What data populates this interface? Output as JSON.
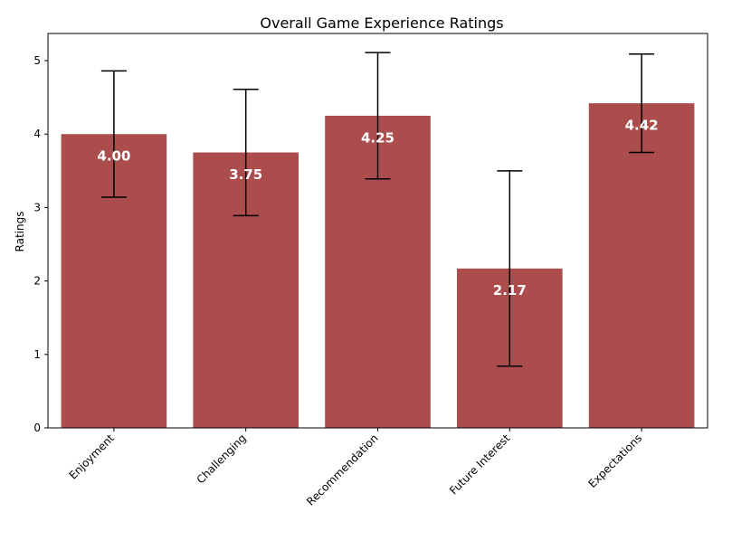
{
  "chart_data": {
    "type": "bar",
    "title": "Overall Game Experience Ratings",
    "xlabel": "",
    "ylabel": "Ratings",
    "categories": [
      "Enjoyment",
      "Challenging",
      "Recommendation",
      "Future Interest",
      "Expectations"
    ],
    "values": [
      4.0,
      3.75,
      4.25,
      2.17,
      4.42
    ],
    "value_labels": [
      "4.00",
      "3.75",
      "4.25",
      "2.17",
      "4.42"
    ],
    "error": [
      0.86,
      0.86,
      0.86,
      1.33,
      0.67
    ],
    "ylim": [
      0,
      5.37
    ],
    "yticks": [
      0,
      1,
      2,
      3,
      4,
      5
    ],
    "ytick_labels": [
      "0",
      "1",
      "2",
      "3",
      "4",
      "5"
    ],
    "grid": false,
    "bar_color": "#ab4d4d"
  }
}
